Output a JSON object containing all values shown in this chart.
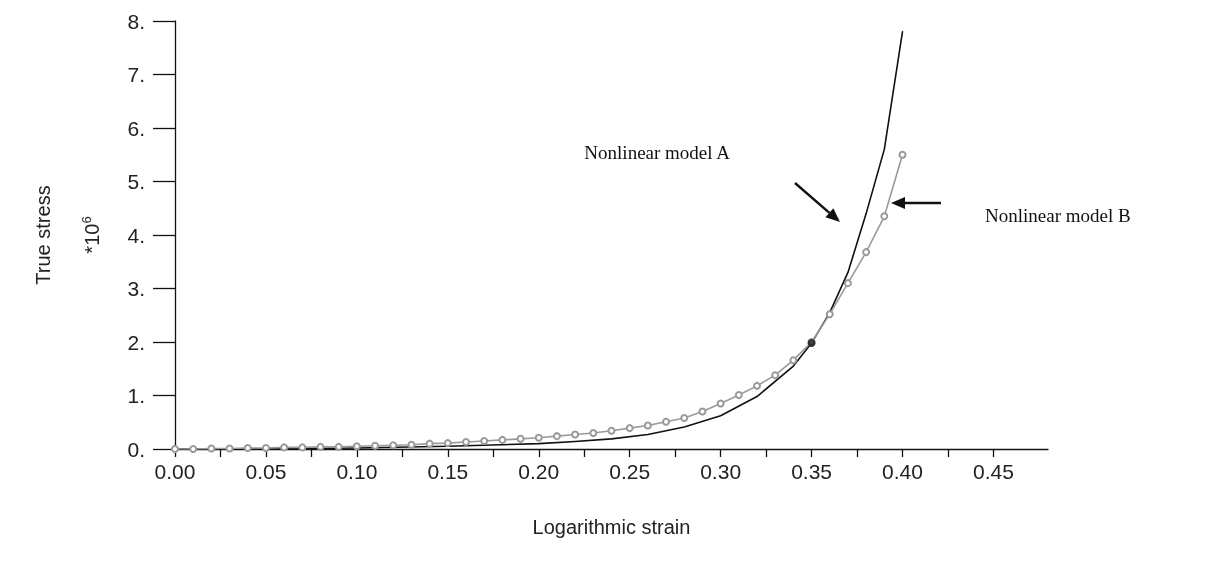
{
  "chart_data": {
    "type": "line",
    "xlabel": "Logarithmic strain",
    "ylabel": "True stress",
    "xlim": [
      0,
      0.48
    ],
    "ylim": [
      0,
      8
    ],
    "xticks": [
      {
        "value": 0,
        "label": "0.00"
      },
      {
        "value": 0.025,
        "label": null
      },
      {
        "value": 0.05,
        "label": "0.05"
      },
      {
        "value": 0.075,
        "label": null
      },
      {
        "value": 0.1,
        "label": "0.10"
      },
      {
        "value": 0.125,
        "label": null
      },
      {
        "value": 0.15,
        "label": "0.15"
      },
      {
        "value": 0.175,
        "label": null
      },
      {
        "value": 0.2,
        "label": "0.20"
      },
      {
        "value": 0.225,
        "label": null
      },
      {
        "value": 0.25,
        "label": "0.25"
      },
      {
        "value": 0.275,
        "label": null
      },
      {
        "value": 0.3,
        "label": "0.30"
      },
      {
        "value": 0.325,
        "label": null
      },
      {
        "value": 0.35,
        "label": "0.35"
      },
      {
        "value": 0.375,
        "label": null
      },
      {
        "value": 0.4,
        "label": "0.40"
      },
      {
        "value": 0.425,
        "label": null
      },
      {
        "value": 0.45,
        "label": "0.45"
      }
    ],
    "yticks": [
      {
        "value": 0,
        "label": "0."
      },
      {
        "value": 1,
        "label": "1."
      },
      {
        "value": 2,
        "label": "2."
      },
      {
        "value": 3,
        "label": "3."
      },
      {
        "value": 4,
        "label": "4."
      },
      {
        "value": 5,
        "label": "5."
      },
      {
        "value": 6,
        "label": "6."
      },
      {
        "value": 7,
        "label": "7."
      },
      {
        "value": 8,
        "label": "8."
      }
    ],
    "grid": false,
    "series": [
      {
        "type": "line",
        "color": "#111111",
        "marker": "none",
        "line_style": "solid",
        "x": [
          0,
          0.05,
          0.1,
          0.15,
          0.2,
          0.22,
          0.24,
          0.26,
          0.28,
          0.3,
          0.32,
          0.34,
          0.35,
          0.36,
          0.37,
          0.38,
          0.39,
          0.4
        ],
        "values": [
          0,
          0,
          0.02,
          0.05,
          0.1,
          0.14,
          0.19,
          0.27,
          0.41,
          0.62,
          0.98,
          1.55,
          1.98,
          2.55,
          3.3,
          4.4,
          5.6,
          7.8
        ]
      },
      {
        "type": "line",
        "color": "#9a9a9a",
        "marker": "circle",
        "line_style": "solid",
        "x": [
          0,
          0.01,
          0.02,
          0.03,
          0.04,
          0.05,
          0.06,
          0.07,
          0.08,
          0.09,
          0.1,
          0.11,
          0.12,
          0.13,
          0.14,
          0.15,
          0.16,
          0.17,
          0.18,
          0.19,
          0.2,
          0.21,
          0.22,
          0.23,
          0.24,
          0.25,
          0.26,
          0.27,
          0.28,
          0.29,
          0.3,
          0.31,
          0.32,
          0.33,
          0.34,
          0.35,
          0.36,
          0.37,
          0.38,
          0.39,
          0.4
        ],
        "values": [
          0,
          0,
          0.01,
          0.01,
          0.02,
          0.02,
          0.03,
          0.03,
          0.04,
          0.04,
          0.05,
          0.06,
          0.07,
          0.08,
          0.1,
          0.11,
          0.13,
          0.15,
          0.17,
          0.19,
          0.21,
          0.24,
          0.27,
          0.3,
          0.34,
          0.39,
          0.44,
          0.51,
          0.58,
          0.7,
          0.85,
          1.01,
          1.18,
          1.38,
          1.66,
          2.0,
          2.52,
          3.1,
          3.68,
          4.35,
          5.5
        ]
      },
      {
        "type": "scatter",
        "color": "#111111",
        "marker": "circle",
        "x": [
          0.35
        ],
        "values": [
          1.98
        ]
      }
    ],
    "annotations": [
      "*10$^{6}$",
      "Nonlinear model A",
      "Nonlinear model B"
    ]
  }
}
